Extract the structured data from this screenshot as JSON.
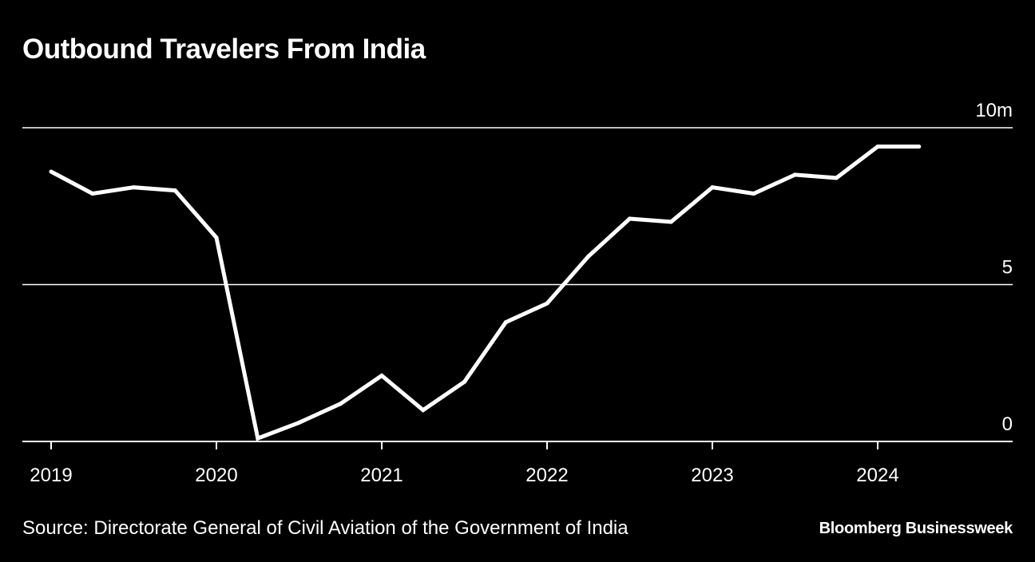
{
  "chart_data": {
    "type": "line",
    "title": "Outbound Travelers From India",
    "unit_label": "10m",
    "xlabel": "",
    "ylabel": "",
    "ylim": [
      0,
      10
    ],
    "xlim": [
      2019.0,
      2024.75
    ],
    "yticks": [
      {
        "value": 10,
        "label": "10m"
      },
      {
        "value": 5,
        "label": "5"
      },
      {
        "value": 0,
        "label": "0"
      }
    ],
    "xticks": [
      {
        "value": 2019,
        "label": "2019"
      },
      {
        "value": 2020,
        "label": "2020"
      },
      {
        "value": 2021,
        "label": "2021"
      },
      {
        "value": 2022,
        "label": "2022"
      },
      {
        "value": 2023,
        "label": "2023"
      },
      {
        "value": 2024,
        "label": "2024"
      }
    ],
    "grid": true,
    "series": [
      {
        "name": "Outbound Travelers",
        "x": [
          2019.0,
          2019.25,
          2019.5,
          2019.75,
          2020.0,
          2020.25,
          2020.5,
          2020.75,
          2021.0,
          2021.25,
          2021.5,
          2021.75,
          2022.0,
          2022.25,
          2022.5,
          2022.75,
          2023.0,
          2023.25,
          2023.5,
          2023.75,
          2024.0,
          2024.25
        ],
        "values": [
          8.6,
          7.9,
          8.1,
          8.0,
          6.5,
          0.1,
          0.6,
          1.2,
          2.1,
          1.0,
          1.9,
          3.8,
          4.4,
          5.9,
          7.1,
          7.0,
          8.1,
          7.9,
          8.5,
          8.4,
          9.4,
          9.4
        ]
      }
    ]
  },
  "footer": {
    "source": "Source: Directorate General of Civil Aviation of the Government of India",
    "brand": "Bloomberg Businessweek"
  }
}
